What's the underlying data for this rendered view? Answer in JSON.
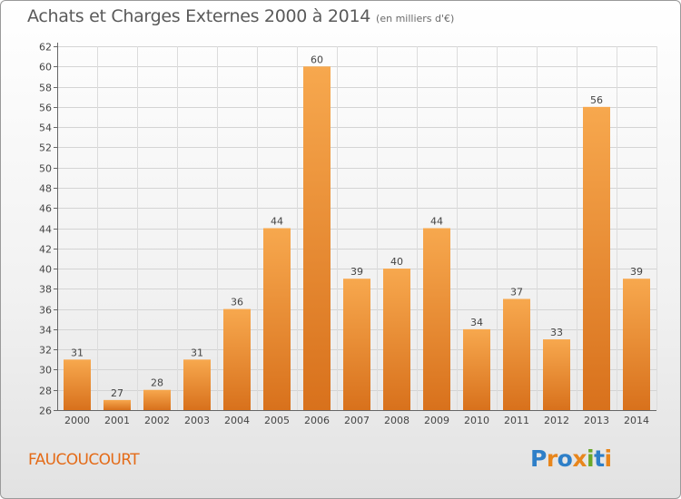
{
  "title": "Achats et Charges Externes 2000 à 2014",
  "subtitle": "(en milliers d'€)",
  "commune": "FAUCOUCOURT",
  "logo": {
    "text": "Proxiti",
    "letters": [
      "P",
      "r",
      "o",
      "x",
      "i",
      "t",
      "i"
    ],
    "colors": [
      "#2e7fc8",
      "#e8861c",
      "#2e7fc8",
      "#e8861c",
      "#6aa82a",
      "#2e7fc8",
      "#e8861c"
    ]
  },
  "colors": {
    "bar_light": "#f7a84e",
    "bar_dark": "#d8711c",
    "title": "#5a5a5a",
    "commune": "#e46b18"
  },
  "chart_data": {
    "type": "bar",
    "title": "Achats et Charges Externes 2000 à 2014",
    "subtitle": "(en milliers d'€)",
    "xlabel": "",
    "ylabel": "",
    "categories": [
      "2000",
      "2001",
      "2002",
      "2003",
      "2004",
      "2005",
      "2006",
      "2007",
      "2008",
      "2009",
      "2010",
      "2011",
      "2012",
      "2013",
      "2014"
    ],
    "values": [
      31,
      27,
      28,
      31,
      36,
      44,
      60,
      39,
      40,
      44,
      34,
      37,
      33,
      56,
      39
    ],
    "ylim": [
      26,
      62
    ],
    "yticks": [
      26,
      28,
      30,
      32,
      34,
      36,
      38,
      40,
      42,
      44,
      46,
      48,
      50,
      52,
      54,
      56,
      58,
      60,
      62
    ],
    "grid": true,
    "legend": "none"
  }
}
